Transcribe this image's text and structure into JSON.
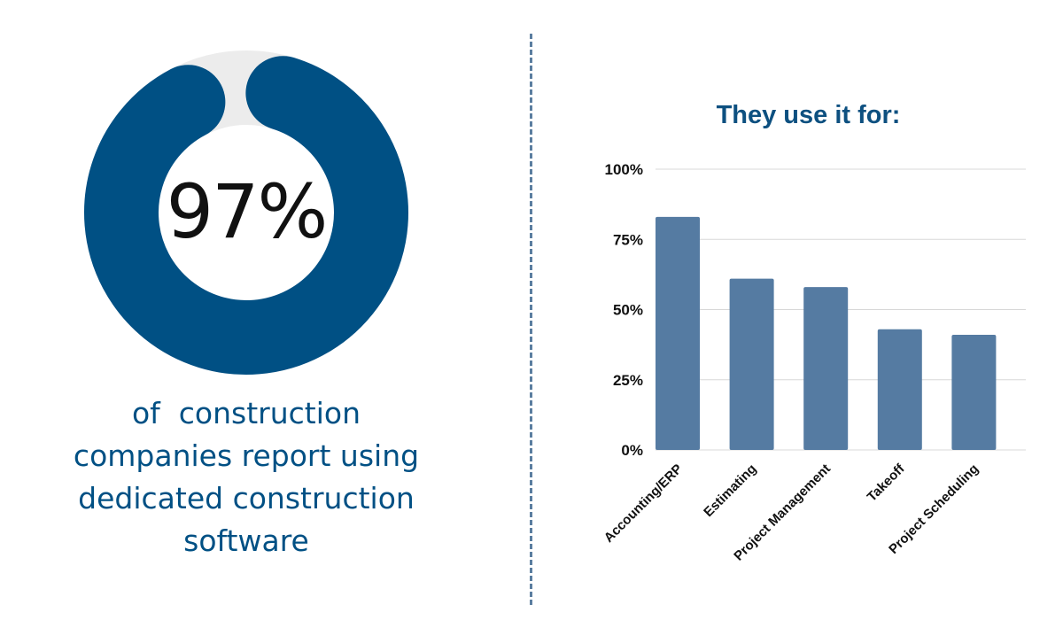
{
  "stat": {
    "value": "97%",
    "percent": 97,
    "caption": "of  construction\ncompanies report using\ndedicated construction\nsoftware"
  },
  "colors": {
    "donut_fill": "#005084",
    "donut_track": "#ececec",
    "bar_fill": "#557ba2",
    "title": "#0d5080",
    "caption": "#005084",
    "divider": "#5b7ea0"
  },
  "chart_data": {
    "type": "bar",
    "title": "They use it for:",
    "xlabel": "",
    "ylabel": "",
    "categories": [
      "Accounting/ERP",
      "Estimating",
      "Project Management",
      "Takeoff",
      "Project Scheduling"
    ],
    "values": [
      83,
      61,
      58,
      43,
      41
    ],
    "ylim": [
      0,
      100
    ],
    "yticks": [
      "0%",
      "25%",
      "50%",
      "75%",
      "100%"
    ],
    "grid": true,
    "x_tick_rotation": "diagonal"
  }
}
